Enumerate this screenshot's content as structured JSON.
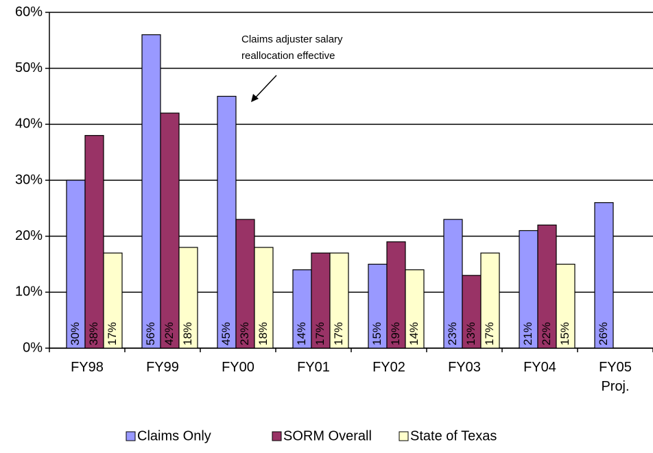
{
  "chart_data": {
    "type": "bar",
    "categories": [
      "FY98",
      "FY99",
      "FY00",
      "FY01",
      "FY02",
      "FY03",
      "FY04",
      "FY05 Proj."
    ],
    "series": [
      {
        "name": "Claims Only",
        "color": "#9999ff",
        "values": [
          30,
          56,
          45,
          14,
          15,
          23,
          21,
          26
        ],
        "value_labels": [
          "30%",
          "56%",
          "45%",
          "14%",
          "15%",
          "23%",
          "21%",
          "26%"
        ]
      },
      {
        "name": "SORM Overall",
        "color": "#993366",
        "values": [
          38,
          42,
          23,
          17,
          19,
          13,
          22,
          null
        ],
        "value_labels": [
          "38%",
          "42%",
          "23%",
          "17%",
          "19%",
          "13%",
          "22%",
          null
        ]
      },
      {
        "name": "State of Texas",
        "color": "#ffffcc",
        "values": [
          17,
          18,
          18,
          17,
          14,
          17,
          15,
          null
        ],
        "value_labels": [
          "17%",
          "18%",
          "18%",
          "17%",
          "14%",
          "17%",
          "15%",
          null
        ]
      }
    ],
    "ylim": [
      0,
      60
    ],
    "yticks": [
      {
        "value": 0,
        "label": "0%"
      },
      {
        "value": 10,
        "label": "10%"
      },
      {
        "value": 20,
        "label": "20%"
      },
      {
        "value": 30,
        "label": "30%"
      },
      {
        "value": 40,
        "label": "40%"
      },
      {
        "value": 50,
        "label": "50%"
      },
      {
        "value": 60,
        "label": "60%"
      }
    ],
    "grid": true,
    "legend": "bottom",
    "annotation": [
      "Claims adjuster salary",
      "reallocation effective"
    ]
  }
}
